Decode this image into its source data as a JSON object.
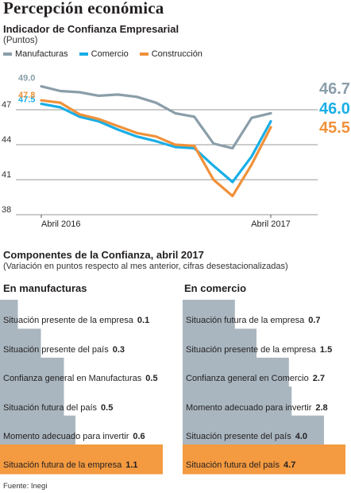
{
  "page": {
    "title": "Percepción económica",
    "source": "Fuente: Inegi"
  },
  "colors": {
    "manufacturas": "#8a9ea9",
    "comercio": "#19aee6",
    "construccion": "#f0913a",
    "bar_fill": "#a9b6bf",
    "bar_highlight": "#f49a40",
    "grid": "#9a9a9a"
  },
  "chart_data": [
    {
      "type": "line",
      "title": "Indicador de Confianza Empresarial",
      "subtitle": "(Puntos)",
      "ylim": [
        38,
        50
      ],
      "yticks": [
        "38",
        "41",
        "44",
        "47"
      ],
      "xticklabels": [
        "Abril 2016",
        "Abril 2017"
      ],
      "x": [
        "2016-04",
        "2016-05",
        "2016-06",
        "2016-07",
        "2016-08",
        "2016-09",
        "2016-10",
        "2016-11",
        "2016-12",
        "2017-01",
        "2017-02",
        "2017-03",
        "2017-04"
      ],
      "series": [
        {
          "name": "Manufacturas",
          "key": "manufacturas",
          "values": [
            49.0,
            48.6,
            48.5,
            48.2,
            48.3,
            48.1,
            47.6,
            46.7,
            46.4,
            44.1,
            43.7,
            46.3,
            46.7
          ],
          "start_label": "49.0",
          "end_label": "46.7"
        },
        {
          "name": "Comercio",
          "key": "comercio",
          "values": [
            47.5,
            47.2,
            46.4,
            46.0,
            45.3,
            44.7,
            44.3,
            43.8,
            43.7,
            42.2,
            40.8,
            43.0,
            46.0
          ],
          "start_label": "47.5",
          "end_label": "46.0"
        },
        {
          "name": "Construcción",
          "key": "construccion",
          "values": [
            47.8,
            47.6,
            46.6,
            46.2,
            45.6,
            45.0,
            44.7,
            44.0,
            43.9,
            41.0,
            39.6,
            42.3,
            45.5
          ],
          "start_label": "47.8",
          "end_label": "45.5"
        }
      ]
    },
    {
      "type": "bar",
      "title": "Componentes de la Confianza, abril 2017",
      "subtitle": "(Variación en puntos respecto al mes anterior, cifras desestacionalizadas)",
      "panel_title": "En manufacturas",
      "categories": [
        "Situación presente de la empresa",
        "Situación presente del país",
        "Confianza general en Manufacturas",
        "Situación futura del país",
        "Momento adecuado para invertir",
        "Situación futura de la empresa"
      ],
      "values": [
        0.1,
        0.3,
        0.5,
        0.5,
        0.6,
        1.1
      ],
      "value_labels": [
        "0.1",
        "0.3",
        "0.5",
        "0.5",
        "0.6",
        "1.1"
      ],
      "highlight_index": 5
    },
    {
      "type": "bar",
      "panel_title": "En comercio",
      "categories": [
        "Situación futura de la empresa",
        "Situación presente de la empresa",
        "Confianza general en Comercio",
        "Momento adecuado para invertir",
        "Situación presente del país",
        "Situación futura del país"
      ],
      "values": [
        0.7,
        1.5,
        2.7,
        2.8,
        4.0,
        4.7
      ],
      "value_labels": [
        "0.7",
        "1.5",
        "2.7",
        "2.8",
        "4.0",
        "4.7"
      ],
      "highlight_index": 5
    }
  ]
}
